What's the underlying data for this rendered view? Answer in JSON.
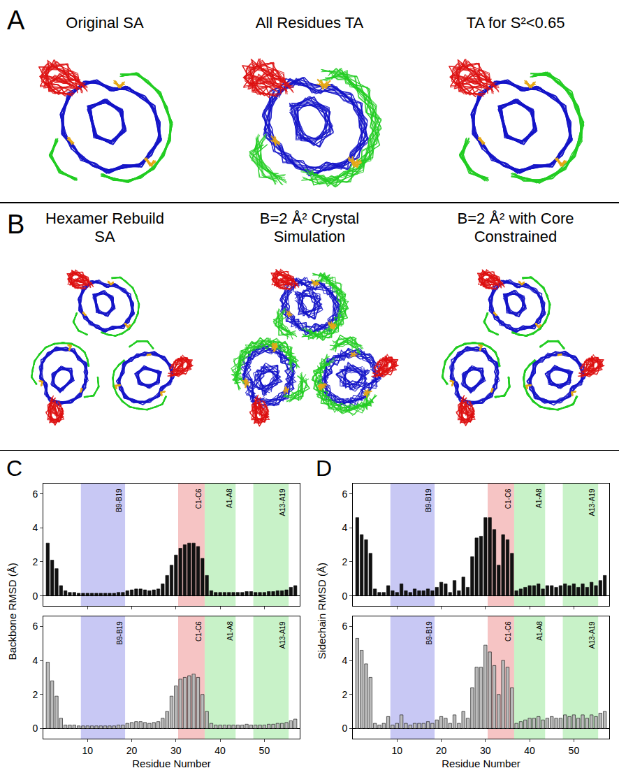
{
  "structure_panels": [
    {
      "letter": "A",
      "titles": [
        "Original SA",
        "All Residues TA",
        "TA for S²<0.65"
      ]
    },
    {
      "letter": "B",
      "titles": [
        "Hexamer Rebuild SA",
        "B=2 Å² Crystal Simulation",
        "B=2 Å² with Core Constrained"
      ]
    }
  ],
  "chart_data": [
    {
      "panel": "C",
      "type": "bar",
      "y_label": "Backbone RMSD (Å)",
      "x_label": "Residue Number",
      "grid": false,
      "x": [
        1,
        2,
        3,
        4,
        5,
        6,
        7,
        8,
        9,
        10,
        11,
        12,
        13,
        14,
        15,
        16,
        17,
        18,
        19,
        20,
        21,
        22,
        23,
        24,
        25,
        26,
        27,
        28,
        29,
        30,
        31,
        32,
        33,
        34,
        35,
        36,
        37,
        38,
        39,
        40,
        41,
        42,
        43,
        44,
        45,
        46,
        47,
        48,
        49,
        50,
        51,
        52,
        53,
        54,
        55,
        56,
        57
      ],
      "xlim": [
        0,
        58
      ],
      "xticks": [
        10,
        20,
        30,
        40,
        50
      ],
      "ylim": [
        -0.6,
        6.6
      ],
      "yticks": [
        0,
        2,
        4,
        6
      ],
      "regions": [
        {
          "label": "B9-B19",
          "start": 8.5,
          "end": 18.5,
          "color": "#c8c8f4"
        },
        {
          "label": "C1-C6",
          "start": 30.5,
          "end": 36.5,
          "color": "#f6c4c4"
        },
        {
          "label": "A1-A8",
          "start": 36.5,
          "end": 43.5,
          "color": "#c8f2c8"
        },
        {
          "label": "A13-A19",
          "start": 47.5,
          "end": 55.5,
          "color": "#c8f2c8"
        }
      ],
      "series": [
        {
          "color": "#111111",
          "values": [
            3.1,
            2.1,
            1.6,
            0.6,
            0.3,
            0.2,
            0.2,
            0.15,
            0.15,
            0.15,
            0.15,
            0.15,
            0.15,
            0.15,
            0.15,
            0.15,
            0.2,
            0.2,
            0.3,
            0.35,
            0.4,
            0.4,
            0.35,
            0.3,
            0.35,
            0.4,
            0.7,
            1.2,
            1.8,
            2.4,
            2.8,
            3.0,
            3.1,
            3.1,
            2.9,
            2.2,
            1.2,
            0.3,
            0.2,
            0.2,
            0.2,
            0.2,
            0.2,
            0.2,
            0.2,
            0.25,
            0.25,
            0.2,
            0.2,
            0.2,
            0.25,
            0.25,
            0.3,
            0.3,
            0.35,
            0.5,
            0.6
          ]
        },
        {
          "color": "#bbbbbb",
          "values": [
            3.9,
            2.8,
            1.9,
            0.6,
            0.2,
            0.2,
            0.2,
            0.15,
            0.15,
            0.15,
            0.15,
            0.15,
            0.15,
            0.15,
            0.15,
            0.15,
            0.2,
            0.2,
            0.3,
            0.35,
            0.4,
            0.4,
            0.35,
            0.3,
            0.35,
            0.4,
            0.6,
            1.0,
            1.9,
            2.5,
            2.9,
            3.0,
            3.1,
            3.2,
            3.0,
            2.0,
            1.0,
            0.3,
            0.2,
            0.2,
            0.2,
            0.2,
            0.2,
            0.2,
            0.2,
            0.25,
            0.2,
            0.2,
            0.2,
            0.2,
            0.25,
            0.25,
            0.3,
            0.3,
            0.35,
            0.45,
            0.55
          ]
        }
      ]
    },
    {
      "panel": "D",
      "type": "bar",
      "y_label": "Sidechain RMSD (Å)",
      "x_label": "Residue Number",
      "grid": false,
      "x": [
        1,
        2,
        3,
        4,
        5,
        6,
        7,
        8,
        9,
        10,
        11,
        12,
        13,
        14,
        15,
        16,
        17,
        18,
        19,
        20,
        21,
        22,
        23,
        24,
        25,
        26,
        27,
        28,
        29,
        30,
        31,
        32,
        33,
        34,
        35,
        36,
        37,
        38,
        39,
        40,
        41,
        42,
        43,
        44,
        45,
        46,
        47,
        48,
        49,
        50,
        51,
        52,
        53,
        54,
        55,
        56,
        57
      ],
      "xlim": [
        0,
        58
      ],
      "xticks": [
        10,
        20,
        30,
        40,
        50
      ],
      "ylim": [
        -0.6,
        6.6
      ],
      "yticks": [
        0,
        2,
        4,
        6
      ],
      "regions": [
        {
          "label": "B9-B19",
          "start": 8.5,
          "end": 18.5,
          "color": "#c8c8f4"
        },
        {
          "label": "C1-C6",
          "start": 30.5,
          "end": 36.5,
          "color": "#f6c4c4"
        },
        {
          "label": "A1-A8",
          "start": 36.5,
          "end": 43.5,
          "color": "#c8f2c8"
        },
        {
          "label": "A13-A19",
          "start": 47.5,
          "end": 55.5,
          "color": "#c8f2c8"
        }
      ],
      "series": [
        {
          "color": "#111111",
          "values": [
            4.6,
            3.6,
            3.3,
            2.5,
            0.4,
            0.2,
            0.2,
            0.6,
            0.3,
            0.2,
            0.7,
            0.3,
            0.2,
            0.4,
            0.3,
            0.3,
            0.4,
            0.3,
            0.5,
            0.8,
            0.7,
            0.2,
            0.9,
            0.3,
            1.1,
            0.5,
            2.3,
            3.4,
            3.5,
            4.6,
            4.6,
            3.9,
            1.8,
            3.6,
            3.3,
            2.5,
            0.3,
            0.4,
            0.5,
            0.6,
            0.6,
            0.7,
            0.4,
            0.6,
            0.6,
            0.5,
            0.6,
            0.7,
            0.6,
            0.7,
            0.5,
            0.7,
            0.5,
            0.8,
            0.6,
            0.9,
            1.2
          ]
        },
        {
          "color": "#bbbbbb",
          "values": [
            5.3,
            4.6,
            3.8,
            3.0,
            0.3,
            0.2,
            0.3,
            0.7,
            0.2,
            0.3,
            0.8,
            0.3,
            0.2,
            0.3,
            0.3,
            0.3,
            0.4,
            0.3,
            0.5,
            0.7,
            0.6,
            0.3,
            0.8,
            0.3,
            1.0,
            0.6,
            2.4,
            3.6,
            3.6,
            4.9,
            4.5,
            3.7,
            2.0,
            4.0,
            3.6,
            2.4,
            0.3,
            0.4,
            0.5,
            0.6,
            0.6,
            0.7,
            0.5,
            0.6,
            0.7,
            0.6,
            0.6,
            0.8,
            0.7,
            0.8,
            0.6,
            0.8,
            0.6,
            0.8,
            0.7,
            0.9,
            1.0
          ]
        }
      ]
    }
  ]
}
